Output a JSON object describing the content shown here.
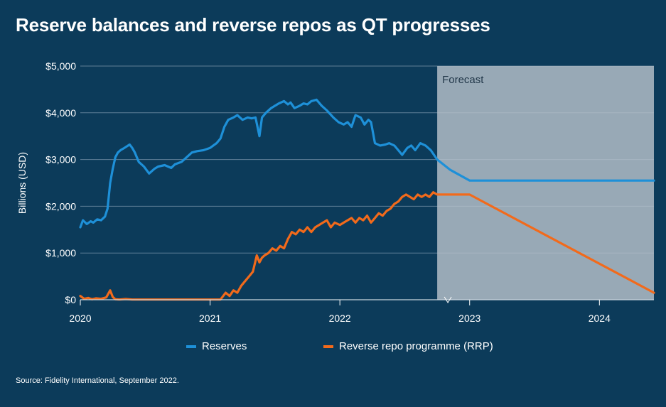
{
  "chart_data": {
    "type": "line",
    "title": "Reserve balances and reverse repos as QT progresses",
    "ylabel": "Billions (USD)",
    "xlabel": "",
    "ylim": [
      0,
      5000
    ],
    "xlim": [
      2020.0,
      2024.42
    ],
    "y_ticks": [
      0,
      1000,
      2000,
      3000,
      4000,
      5000
    ],
    "y_tick_labels": [
      "$0",
      "$1,000",
      "$2,000",
      "$3,000",
      "$4,000",
      "$5,000"
    ],
    "x_ticks": [
      {
        "value": 2020.0,
        "label": "2020"
      },
      {
        "value": 2021.0,
        "label": "2021"
      },
      {
        "value": 2022.0,
        "label": "2022"
      },
      {
        "value": 2023.0,
        "label": "2023"
      },
      {
        "value": 2024.0,
        "label": "2024"
      }
    ],
    "forecast": {
      "label": "Forecast",
      "start": 2022.75,
      "end": 2024.42
    },
    "colors": {
      "reserves": "#1e90d8",
      "rrp": "#f26a1b",
      "grid": "#5f7f97",
      "forecast": "#b7c2cb"
    },
    "series": [
      {
        "name": "Reserves",
        "x": [
          2020.0,
          2020.02,
          2020.05,
          2020.08,
          2020.1,
          2020.13,
          2020.16,
          2020.19,
          2020.21,
          2020.23,
          2020.25,
          2020.27,
          2020.29,
          2020.31,
          2020.34,
          2020.38,
          2020.4,
          2020.42,
          2020.45,
          2020.49,
          2020.53,
          2020.57,
          2020.6,
          2020.65,
          2020.7,
          2020.73,
          2020.78,
          2020.82,
          2020.86,
          2020.9,
          2020.95,
          2021.0,
          2021.05,
          2021.08,
          2021.11,
          2021.14,
          2021.18,
          2021.21,
          2021.25,
          2021.29,
          2021.32,
          2021.35,
          2021.38,
          2021.4,
          2021.43,
          2021.47,
          2021.5,
          2021.53,
          2021.57,
          2021.6,
          2021.62,
          2021.65,
          2021.69,
          2021.72,
          2021.75,
          2021.78,
          2021.82,
          2021.86,
          2021.9,
          2021.95,
          2021.99,
          2022.03,
          2022.06,
          2022.09,
          2022.12,
          2022.16,
          2022.19,
          2022.22,
          2022.24,
          2022.27,
          2022.31,
          2022.35,
          2022.38,
          2022.42,
          2022.45,
          2022.48,
          2022.52,
          2022.55,
          2022.58,
          2022.62,
          2022.66,
          2022.7,
          2022.75,
          2022.85,
          2023.0,
          2023.5,
          2024.42
        ],
        "values": [
          1550,
          1700,
          1620,
          1680,
          1650,
          1720,
          1700,
          1780,
          1950,
          2500,
          2800,
          3050,
          3150,
          3200,
          3250,
          3320,
          3250,
          3150,
          2950,
          2850,
          2700,
          2800,
          2850,
          2880,
          2820,
          2900,
          2950,
          3050,
          3150,
          3180,
          3200,
          3250,
          3350,
          3450,
          3700,
          3850,
          3900,
          3950,
          3850,
          3900,
          3880,
          3900,
          3500,
          3900,
          4000,
          4100,
          4150,
          4200,
          4250,
          4180,
          4220,
          4100,
          4150,
          4200,
          4180,
          4250,
          4280,
          4150,
          4050,
          3900,
          3800,
          3750,
          3800,
          3700,
          3950,
          3900,
          3750,
          3850,
          3800,
          3350,
          3300,
          3320,
          3350,
          3300,
          3200,
          3100,
          3250,
          3300,
          3200,
          3350,
          3300,
          3200,
          3000,
          2780,
          2550,
          2550,
          2550
        ]
      },
      {
        "name": "Reverse repo programme (RRP)",
        "x": [
          2020.0,
          2020.03,
          2020.06,
          2020.09,
          2020.12,
          2020.16,
          2020.2,
          2020.23,
          2020.25,
          2020.27,
          2020.3,
          2020.35,
          2020.4,
          2020.5,
          2020.6,
          2020.7,
          2020.8,
          2020.9,
          2021.0,
          2021.08,
          2021.12,
          2021.15,
          2021.18,
          2021.21,
          2021.24,
          2021.27,
          2021.3,
          2021.33,
          2021.36,
          2021.38,
          2021.4,
          2021.42,
          2021.45,
          2021.48,
          2021.51,
          2021.54,
          2021.57,
          2021.6,
          2021.63,
          2021.66,
          2021.69,
          2021.72,
          2021.75,
          2021.78,
          2021.81,
          2021.84,
          2021.87,
          2021.9,
          2021.93,
          2021.96,
          2022.0,
          2022.03,
          2022.06,
          2022.09,
          2022.12,
          2022.15,
          2022.18,
          2022.21,
          2022.24,
          2022.27,
          2022.3,
          2022.33,
          2022.36,
          2022.39,
          2022.42,
          2022.45,
          2022.48,
          2022.51,
          2022.54,
          2022.57,
          2022.6,
          2022.63,
          2022.66,
          2022.69,
          2022.72,
          2022.75,
          2022.9,
          2023.0,
          2024.42
        ],
        "values": [
          80,
          20,
          40,
          10,
          30,
          20,
          50,
          200,
          60,
          10,
          5,
          15,
          5,
          5,
          5,
          5,
          5,
          5,
          5,
          5,
          150,
          80,
          200,
          150,
          300,
          400,
          500,
          600,
          950,
          800,
          900,
          950,
          1000,
          1100,
          1050,
          1150,
          1100,
          1300,
          1450,
          1400,
          1500,
          1450,
          1550,
          1450,
          1550,
          1600,
          1650,
          1700,
          1550,
          1650,
          1600,
          1650,
          1700,
          1750,
          1650,
          1750,
          1700,
          1800,
          1650,
          1750,
          1850,
          1800,
          1900,
          1950,
          2050,
          2100,
          2200,
          2250,
          2200,
          2150,
          2250,
          2200,
          2250,
          2200,
          2300,
          2250,
          2250,
          2250,
          150
        ]
      }
    ]
  },
  "legend": {
    "reserves_label": "Reserves",
    "rrp_label": "Reverse repo programme (RRP)"
  },
  "source": "Source: Fidelity International, September 2022."
}
